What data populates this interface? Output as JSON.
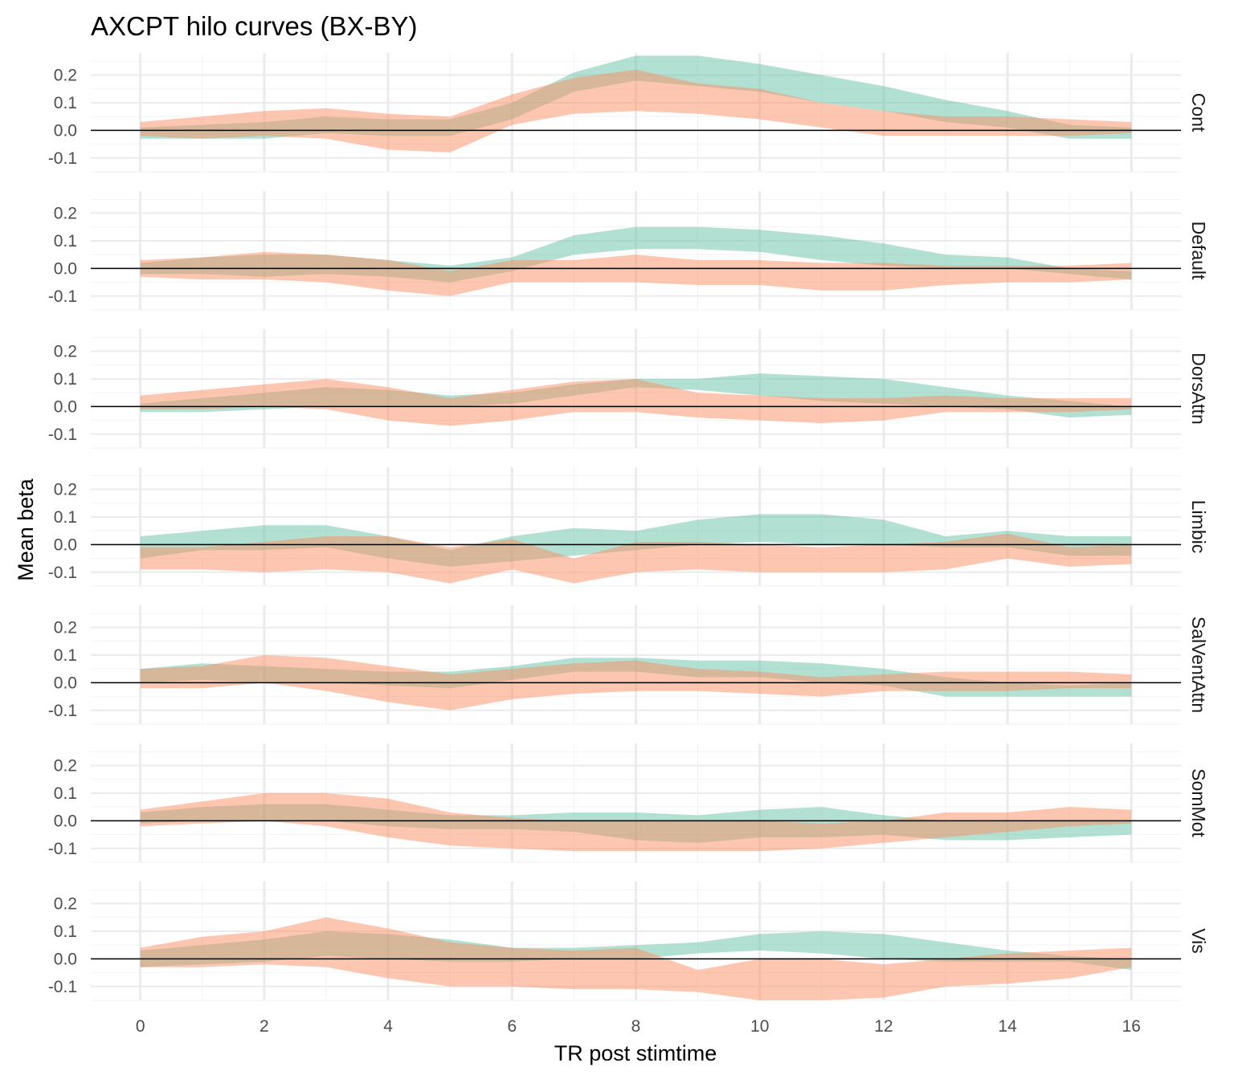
{
  "chart_data": {
    "type": "area",
    "title": "AXCPT hilo curves (BX-BY)",
    "xlabel": "TR post stimtime",
    "ylabel": "Mean beta",
    "x_ticks": [
      "0",
      "2",
      "4",
      "6",
      "8",
      "10",
      "12",
      "14",
      "16"
    ],
    "y_ticks": [
      "-0.1",
      "0.0",
      "0.1",
      "0.2"
    ],
    "xlim": [
      -0.8,
      16.8
    ],
    "ylim": [
      -0.15,
      0.28
    ],
    "grid": true,
    "hline": 0,
    "colors": {
      "series_1": "#66c2a5",
      "series_2": "#fc8d62",
      "zero_line": "#000000"
    },
    "x": [
      0,
      1,
      2,
      3,
      4,
      5,
      6,
      7,
      8,
      9,
      10,
      11,
      12,
      13,
      14,
      15,
      16
    ],
    "panels": [
      {
        "label": "Cont",
        "series": [
          {
            "lower": [
              -0.03,
              -0.03,
              -0.03,
              -0.01,
              -0.02,
              -0.02,
              0.04,
              0.14,
              0.18,
              0.16,
              0.14,
              0.1,
              0.07,
              0.03,
              0.01,
              -0.03,
              -0.03
            ],
            "upper": [
              0.01,
              0.02,
              0.03,
              0.05,
              0.04,
              0.04,
              0.1,
              0.21,
              0.27,
              0.27,
              0.24,
              0.2,
              0.16,
              0.11,
              0.07,
              0.02,
              0.01
            ]
          },
          {
            "lower": [
              -0.02,
              -0.03,
              -0.02,
              -0.03,
              -0.07,
              -0.08,
              0.02,
              0.06,
              0.07,
              0.06,
              0.04,
              0.01,
              -0.02,
              -0.02,
              -0.02,
              -0.02,
              -0.01
            ],
            "upper": [
              0.03,
              0.05,
              0.07,
              0.08,
              0.06,
              0.05,
              0.13,
              0.19,
              0.22,
              0.17,
              0.15,
              0.1,
              0.07,
              0.05,
              0.05,
              0.04,
              0.03
            ]
          }
        ]
      },
      {
        "label": "Default",
        "series": [
          {
            "lower": [
              -0.02,
              -0.02,
              -0.03,
              -0.02,
              -0.03,
              -0.05,
              -0.01,
              0.05,
              0.07,
              0.07,
              0.06,
              0.03,
              0.01,
              0.0,
              0.0,
              -0.02,
              -0.04
            ],
            "upper": [
              0.02,
              0.04,
              0.05,
              0.05,
              0.03,
              0.01,
              0.04,
              0.12,
              0.15,
              0.15,
              0.14,
              0.12,
              0.09,
              0.05,
              0.04,
              0.0,
              -0.01
            ]
          },
          {
            "lower": [
              -0.03,
              -0.04,
              -0.04,
              -0.05,
              -0.08,
              -0.1,
              -0.05,
              -0.05,
              -0.05,
              -0.06,
              -0.06,
              -0.08,
              -0.08,
              -0.06,
              -0.05,
              -0.05,
              -0.04
            ],
            "upper": [
              0.03,
              0.04,
              0.06,
              0.05,
              0.03,
              -0.01,
              0.03,
              0.03,
              0.05,
              0.03,
              0.03,
              0.02,
              0.02,
              0.01,
              0.01,
              0.01,
              0.02
            ]
          }
        ]
      },
      {
        "label": "DorsAttn",
        "series": [
          {
            "lower": [
              -0.02,
              -0.02,
              -0.01,
              0.0,
              0.0,
              0.0,
              0.01,
              0.04,
              0.07,
              0.06,
              0.04,
              0.02,
              0.01,
              0.0,
              -0.01,
              -0.04,
              -0.03
            ],
            "upper": [
              0.01,
              0.03,
              0.05,
              0.07,
              0.06,
              0.04,
              0.05,
              0.08,
              0.1,
              0.1,
              0.12,
              0.11,
              0.1,
              0.07,
              0.04,
              0.02,
              0.0
            ]
          },
          {
            "lower": [
              -0.01,
              -0.01,
              0.0,
              -0.01,
              -0.05,
              -0.07,
              -0.05,
              -0.02,
              -0.02,
              -0.04,
              -0.05,
              -0.06,
              -0.05,
              -0.02,
              -0.02,
              -0.02,
              -0.01
            ],
            "upper": [
              0.04,
              0.06,
              0.08,
              0.1,
              0.07,
              0.03,
              0.06,
              0.09,
              0.1,
              0.05,
              0.04,
              0.03,
              0.03,
              0.04,
              0.03,
              0.03,
              0.03
            ]
          }
        ]
      },
      {
        "label": "Limbic",
        "series": [
          {
            "lower": [
              -0.05,
              -0.02,
              -0.02,
              -0.01,
              -0.05,
              -0.08,
              -0.06,
              -0.04,
              -0.02,
              0.0,
              0.01,
              0.0,
              0.0,
              -0.01,
              -0.01,
              -0.04,
              -0.04
            ],
            "upper": [
              0.03,
              0.05,
              0.07,
              0.07,
              0.03,
              -0.02,
              0.03,
              0.06,
              0.05,
              0.09,
              0.11,
              0.11,
              0.09,
              0.03,
              0.05,
              0.03,
              0.03
            ]
          },
          {
            "lower": [
              -0.09,
              -0.09,
              -0.1,
              -0.09,
              -0.1,
              -0.14,
              -0.09,
              -0.14,
              -0.1,
              -0.09,
              -0.1,
              -0.1,
              -0.1,
              -0.09,
              -0.05,
              -0.08,
              -0.07
            ],
            "upper": [
              -0.01,
              -0.01,
              0.01,
              0.03,
              0.03,
              -0.01,
              0.02,
              -0.05,
              0.01,
              0.01,
              0.0,
              -0.01,
              0.0,
              0.01,
              0.04,
              -0.01,
              0.0
            ]
          }
        ]
      },
      {
        "label": "SalVentAttn",
        "series": [
          {
            "lower": [
              0.0,
              0.01,
              0.0,
              0.0,
              -0.01,
              -0.02,
              0.01,
              0.04,
              0.04,
              0.02,
              0.02,
              0.0,
              -0.01,
              -0.05,
              -0.05,
              -0.05,
              -0.05
            ],
            "upper": [
              0.05,
              0.07,
              0.06,
              0.05,
              0.04,
              0.04,
              0.06,
              0.09,
              0.09,
              0.08,
              0.08,
              0.07,
              0.05,
              0.02,
              0.0,
              -0.01,
              0.0
            ]
          },
          {
            "lower": [
              -0.02,
              -0.02,
              0.0,
              -0.03,
              -0.07,
              -0.1,
              -0.06,
              -0.04,
              -0.03,
              -0.03,
              -0.04,
              -0.05,
              -0.03,
              -0.03,
              -0.03,
              -0.02,
              -0.02
            ],
            "upper": [
              0.05,
              0.06,
              0.1,
              0.09,
              0.06,
              0.03,
              0.05,
              0.07,
              0.08,
              0.05,
              0.04,
              0.02,
              0.03,
              0.04,
              0.04,
              0.04,
              0.03
            ]
          }
        ]
      },
      {
        "label": "SomMot",
        "series": [
          {
            "lower": [
              -0.01,
              0.0,
              0.0,
              0.0,
              -0.02,
              -0.03,
              -0.03,
              -0.04,
              -0.07,
              -0.08,
              -0.06,
              -0.06,
              -0.05,
              -0.07,
              -0.07,
              -0.06,
              -0.05
            ],
            "upper": [
              0.03,
              0.05,
              0.06,
              0.06,
              0.04,
              0.02,
              0.02,
              0.03,
              0.03,
              0.02,
              0.04,
              0.05,
              0.02,
              0.0,
              0.0,
              0.0,
              0.0
            ]
          },
          {
            "lower": [
              -0.02,
              -0.01,
              0.0,
              -0.02,
              -0.06,
              -0.09,
              -0.1,
              -0.11,
              -0.11,
              -0.11,
              -0.11,
              -0.1,
              -0.08,
              -0.06,
              -0.04,
              -0.02,
              -0.01
            ],
            "upper": [
              0.04,
              0.07,
              0.1,
              0.1,
              0.08,
              0.03,
              0.01,
              0.0,
              0.0,
              0.0,
              0.0,
              -0.01,
              0.0,
              0.03,
              0.03,
              0.05,
              0.04
            ]
          }
        ]
      },
      {
        "label": "Vis",
        "series": [
          {
            "lower": [
              -0.03,
              -0.02,
              -0.01,
              0.01,
              0.0,
              -0.01,
              -0.01,
              0.0,
              0.0,
              0.02,
              0.03,
              0.02,
              0.0,
              -0.01,
              -0.01,
              -0.01,
              -0.04
            ],
            "upper": [
              0.03,
              0.05,
              0.07,
              0.1,
              0.09,
              0.07,
              0.04,
              0.04,
              0.05,
              0.06,
              0.09,
              0.1,
              0.09,
              0.06,
              0.03,
              0.01,
              0.0
            ]
          },
          {
            "lower": [
              -0.03,
              -0.03,
              -0.02,
              -0.03,
              -0.07,
              -0.1,
              -0.1,
              -0.11,
              -0.11,
              -0.12,
              -0.15,
              -0.15,
              -0.14,
              -0.1,
              -0.09,
              -0.07,
              -0.03
            ],
            "upper": [
              0.04,
              0.08,
              0.1,
              0.15,
              0.11,
              0.06,
              0.04,
              0.03,
              0.04,
              -0.04,
              0.0,
              0.0,
              -0.02,
              0.0,
              0.02,
              0.03,
              0.04
            ]
          }
        ]
      }
    ]
  }
}
